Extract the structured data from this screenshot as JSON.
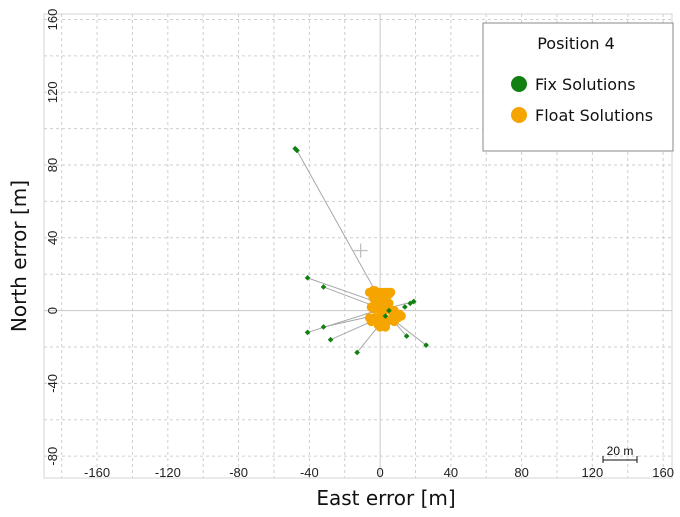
{
  "chart_data": {
    "type": "scatter",
    "title": "",
    "xlabel": "East error [m]",
    "ylabel": "North error [m]",
    "xlim": [
      -190,
      165
    ],
    "ylim": [
      -92,
      163
    ],
    "x_ticks": [
      -160,
      -120,
      -80,
      -40,
      0,
      40,
      80,
      120,
      160
    ],
    "y_ticks": [
      -80,
      -40,
      0,
      40,
      80,
      120,
      160
    ],
    "x_tick_labels": [
      "-160",
      "-120",
      "-80",
      "-40",
      "0",
      "40",
      "80",
      "120",
      "160"
    ],
    "y_tick_labels": [
      "-80",
      "-40",
      "0",
      "40",
      "80",
      "120",
      "160"
    ],
    "grid": true,
    "legend": {
      "title": "Position 4",
      "placement": "top-right",
      "entries": [
        {
          "label": "Fix Solutions",
          "color": "#118011"
        },
        {
          "label": "Float Solutions",
          "color": "#f5a400"
        }
      ]
    },
    "scale_bar": {
      "label": "20 m",
      "length": 20
    },
    "reference_marker": {
      "x": -11,
      "y": 33
    },
    "series": [
      {
        "name": "Fix Solutions",
        "color": "#118011",
        "x": [
          -48,
          -47,
          -41,
          -32,
          -41,
          -32,
          -28,
          -13,
          14,
          17,
          19,
          15,
          26,
          3,
          5
        ],
        "y": [
          89,
          88,
          18,
          13,
          -12,
          -9,
          -16,
          -23,
          2,
          4,
          5,
          -14,
          -19,
          -3,
          0
        ]
      },
      {
        "name": "Float Solutions",
        "color": "#f5a400",
        "x": [
          -6,
          -5,
          -4,
          -3,
          -2,
          -1,
          0,
          1,
          2,
          3,
          4,
          5,
          6,
          -4,
          -3,
          -2,
          -1,
          0,
          1,
          2,
          3,
          4,
          5,
          -5,
          -4,
          -3,
          -2,
          -1,
          0,
          1,
          2,
          3,
          4,
          5,
          6,
          7,
          8,
          9,
          10,
          11,
          12,
          -6,
          -5,
          -4,
          -3,
          -2,
          -1,
          0,
          1,
          2,
          3,
          4,
          6,
          8,
          10,
          -1,
          0,
          1,
          2,
          3
        ],
        "y": [
          10,
          10,
          11,
          11,
          10,
          10,
          9,
          10,
          9,
          10,
          10,
          9,
          10,
          7,
          6,
          5,
          6,
          5,
          4,
          5,
          6,
          5,
          4,
          2,
          1,
          1,
          2,
          1,
          0,
          1,
          0,
          1,
          2,
          1,
          0,
          -1,
          0,
          -2,
          -3,
          -2,
          -3,
          -4,
          -6,
          -5,
          -4,
          -6,
          -5,
          -4,
          -7,
          -6,
          -5,
          -6,
          -5,
          -6,
          -4,
          -8,
          -9,
          -8,
          -7,
          -9
        ]
      }
    ],
    "traces": [
      {
        "from": [
          -47,
          88
        ],
        "to": [
          0,
          6
        ]
      },
      {
        "from": [
          -41,
          18
        ],
        "to": [
          0,
          4
        ]
      },
      {
        "from": [
          -32,
          13
        ],
        "to": [
          -2,
          2
        ]
      },
      {
        "from": [
          -41,
          -12
        ],
        "to": [
          -2,
          0
        ]
      },
      {
        "from": [
          -32,
          -9
        ],
        "to": [
          0,
          -2
        ]
      },
      {
        "from": [
          -28,
          -16
        ],
        "to": [
          2,
          -3
        ]
      },
      {
        "from": [
          -13,
          -23
        ],
        "to": [
          2,
          -5
        ]
      },
      {
        "from": [
          19,
          5
        ],
        "to": [
          3,
          1
        ]
      },
      {
        "from": [
          26,
          -19
        ],
        "to": [
          6,
          -4
        ]
      },
      {
        "from": [
          15,
          -14
        ],
        "to": [
          5,
          -3
        ]
      }
    ]
  }
}
